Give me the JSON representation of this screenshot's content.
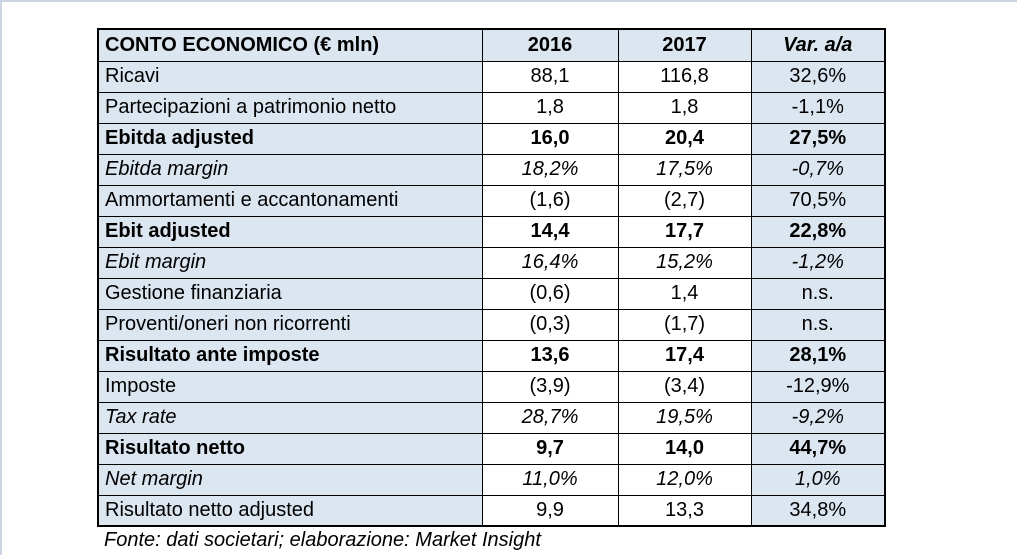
{
  "colors": {
    "cell_blue": "#dce6f1",
    "cell_white": "#ffffff",
    "table_border": "#000000",
    "frame_border": "#ccd4e4",
    "text": "#000000"
  },
  "table": {
    "header": {
      "title": "CONTO ECONOMICO (€ mln)",
      "col_2016": "2016",
      "col_2017": "2017",
      "col_var": "Var. a/a"
    },
    "rows": [
      {
        "label": "Ricavi",
        "y2016": "88,1",
        "y2017": "116,8",
        "var": "32,6%",
        "style": "regular"
      },
      {
        "label": "Partecipazioni a patrimonio netto",
        "y2016": "1,8",
        "y2017": "1,8",
        "var": "-1,1%",
        "style": "regular"
      },
      {
        "label": "Ebitda adjusted",
        "y2016": "16,0",
        "y2017": "20,4",
        "var": "27,5%",
        "style": "bold"
      },
      {
        "label": "Ebitda margin",
        "y2016": "18,2%",
        "y2017": "17,5%",
        "var": "-0,7%",
        "style": "italic"
      },
      {
        "label": "Ammortamenti e accantonamenti",
        "y2016": "(1,6)",
        "y2017": "(2,7)",
        "var": "70,5%",
        "style": "regular"
      },
      {
        "label": "Ebit adjusted",
        "y2016": "14,4",
        "y2017": "17,7",
        "var": "22,8%",
        "style": "bold"
      },
      {
        "label": "Ebit margin",
        "y2016": "16,4%",
        "y2017": "15,2%",
        "var": "-1,2%",
        "style": "italic"
      },
      {
        "label": "Gestione finanziaria",
        "y2016": "(0,6)",
        "y2017": "1,4",
        "var": "n.s.",
        "style": "regular"
      },
      {
        "label": "Proventi/oneri non ricorrenti",
        "y2016": "(0,3)",
        "y2017": "(1,7)",
        "var": "n.s.",
        "style": "regular"
      },
      {
        "label": "Risultato ante imposte",
        "y2016": "13,6",
        "y2017": "17,4",
        "var": "28,1%",
        "style": "bold"
      },
      {
        "label": "Imposte",
        "y2016": "(3,9)",
        "y2017": "(3,4)",
        "var": "-12,9%",
        "style": "regular"
      },
      {
        "label": "Tax rate",
        "y2016": "28,7%",
        "y2017": "19,5%",
        "var": "-9,2%",
        "style": "italic"
      },
      {
        "label": "Risultato netto",
        "y2016": "9,7",
        "y2017": "14,0",
        "var": "44,7%",
        "style": "bold"
      },
      {
        "label": "Net margin",
        "y2016": "11,0%",
        "y2017": "12,0%",
        "var": "1,0%",
        "style": "italic"
      },
      {
        "label": "Risultato netto adjusted",
        "y2016": "9,9",
        "y2017": "13,3",
        "var": "34,8%",
        "style": "regular"
      }
    ]
  },
  "footer": {
    "source": "Fonte: dati societari; elaborazione: Market Insight"
  }
}
